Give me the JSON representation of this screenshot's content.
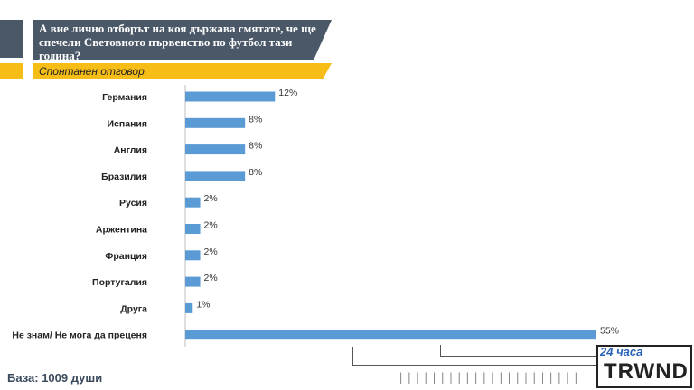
{
  "header": {
    "title": "А вие лично отборът на коя държава смятате, че ще спечели Световното първенство по футбол тази година?",
    "subtitle": "Спонтанен отговор"
  },
  "footer": {
    "base": "База: 1009 души",
    "logo_top": "24 часа",
    "logo_main": "TRWND"
  },
  "colors": {
    "bar": "#5b9bd5",
    "title_bg": "#4a5868",
    "accent": "#f6bd17"
  },
  "chart_data": {
    "type": "bar",
    "orientation": "horizontal",
    "categories": [
      "Германия",
      "Испания",
      "Англия",
      "Бразилия",
      "Русия",
      "Аржентина",
      "Франция",
      "Португалия",
      "Друга",
      "Не знам/ Не мога да преценя"
    ],
    "values": [
      12,
      8,
      8,
      8,
      2,
      2,
      2,
      2,
      1,
      55
    ],
    "value_labels": [
      "12%",
      "8%",
      "8%",
      "8%",
      "2%",
      "2%",
      "2%",
      "2%",
      "1%",
      "55%"
    ],
    "xlim": [
      0,
      55
    ],
    "grid": false,
    "legend": "none"
  }
}
